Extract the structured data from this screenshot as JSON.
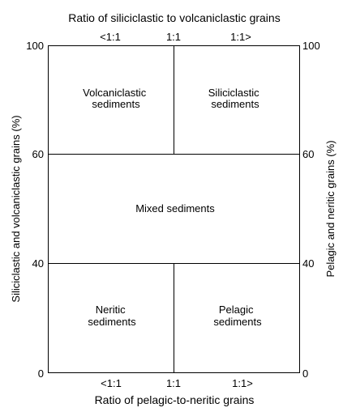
{
  "top_title": "Ratio of siliciclastic to volcaniclastic grains",
  "bottom_title": "Ratio of pelagic-to-neritic grains",
  "left_axis_label": "Siliciclastic and volcaniclastic grains (%)",
  "right_axis_label": "Pelagic and neritic grains (%)",
  "top_ratio_labels": [
    "<1:1",
    "1:1",
    "1:1>"
  ],
  "bottom_ratio_labels": [
    "<1:1",
    "1:1",
    "1:1>"
  ],
  "left_ticks": [
    "100",
    "60",
    "40",
    "0"
  ],
  "right_ticks": [
    "100",
    "60",
    "40",
    "0"
  ],
  "fields": {
    "volcaniclastic": [
      "Volcaniclastic",
      "sediments"
    ],
    "siliciclastic": [
      "Siliciclastic",
      "sediments"
    ],
    "mixed": "Mixed sediments",
    "neritic": [
      "Neritic",
      "sediments"
    ],
    "pelagic": [
      "Pelagic",
      "sediments"
    ]
  }
}
